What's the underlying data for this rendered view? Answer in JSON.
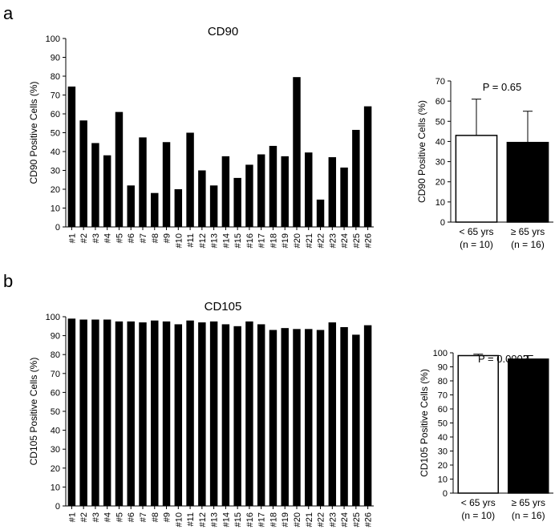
{
  "panels": [
    {
      "letter": "a",
      "main": {
        "type": "bar",
        "title": "CD90",
        "ylabel": "CD90 Positive Cells (%)",
        "ylim": [
          0,
          100
        ],
        "yticks": [
          0,
          10,
          20,
          30,
          40,
          50,
          60,
          70,
          80,
          90,
          100
        ],
        "categories": [
          "#1",
          "#2",
          "#3",
          "#4",
          "#5",
          "#6",
          "#7",
          "#8",
          "#9",
          "#10",
          "#11",
          "#12",
          "#13",
          "#14",
          "#15",
          "#16",
          "#17",
          "#18",
          "#19",
          "#20",
          "#21",
          "#22",
          "#23",
          "#24",
          "#25",
          "#26"
        ],
        "values": [
          74.5,
          56.5,
          44.5,
          38,
          61,
          22,
          47.5,
          18,
          45,
          20,
          50,
          30,
          22,
          37.5,
          26,
          33,
          38.5,
          43,
          37.5,
          79.5,
          39.5,
          14.5,
          37,
          31.5,
          51.5,
          64
        ],
        "bar_color": "#000000"
      },
      "summary": {
        "type": "bar",
        "ylabel": "CD90 Positive Cells (%)",
        "ylim": [
          0,
          70
        ],
        "yticks": [
          0,
          10,
          20,
          30,
          40,
          50,
          60,
          70
        ],
        "categories": [
          {
            "line1": "< 65 yrs",
            "line2": "(n = 10)"
          },
          {
            "line1": "≥ 65 yrs",
            "line2": "(n = 16)"
          }
        ],
        "values": [
          43,
          39.5
        ],
        "errors": [
          18,
          15.5
        ],
        "fills": [
          "#ffffff",
          "#000000"
        ],
        "annotation": "P = 0.65"
      }
    },
    {
      "letter": "b",
      "main": {
        "type": "bar",
        "title": "CD105",
        "ylabel": "CD105 Positive Cells (%)",
        "ylim": [
          0,
          100
        ],
        "yticks": [
          0,
          10,
          20,
          30,
          40,
          50,
          60,
          70,
          80,
          90,
          100
        ],
        "categories": [
          "#1",
          "#2",
          "#3",
          "#4",
          "#5",
          "#6",
          "#7",
          "#8",
          "#9",
          "#10",
          "#11",
          "#12",
          "#13",
          "#14",
          "#15",
          "#16",
          "#17",
          "#18",
          "#19",
          "#20",
          "#21",
          "#22",
          "#23",
          "#24",
          "#25",
          "#26"
        ],
        "values": [
          99,
          98.5,
          98.5,
          98.5,
          97.5,
          97.5,
          97,
          98,
          97.5,
          96,
          98,
          97,
          97.5,
          96,
          95,
          97.5,
          96,
          93,
          94,
          93.5,
          93.5,
          93,
          97,
          94.5,
          90.5,
          95.5
        ],
        "bar_color": "#000000"
      },
      "summary": {
        "type": "bar",
        "ylabel": "CD105 Positive Cells (%)",
        "ylim": [
          0,
          100
        ],
        "yticks": [
          0,
          10,
          20,
          30,
          40,
          50,
          60,
          70,
          80,
          90,
          100
        ],
        "categories": [
          {
            "line1": "< 65 yrs",
            "line2": "(n = 10)"
          },
          {
            "line1": "≥ 65 yrs",
            "line2": "(n = 16)"
          }
        ],
        "values": [
          98,
          95.5
        ],
        "errors": [
          1,
          2.5
        ],
        "fills": [
          "#ffffff",
          "#000000"
        ],
        "annotation": "P = 0.0002"
      }
    }
  ],
  "chart_data": [
    {
      "type": "bar",
      "title": "CD90",
      "ylabel": "CD90 Positive Cells (%)",
      "ylim": [
        0,
        100
      ],
      "categories": [
        "#1",
        "#2",
        "#3",
        "#4",
        "#5",
        "#6",
        "#7",
        "#8",
        "#9",
        "#10",
        "#11",
        "#12",
        "#13",
        "#14",
        "#15",
        "#16",
        "#17",
        "#18",
        "#19",
        "#20",
        "#21",
        "#22",
        "#23",
        "#24",
        "#25",
        "#26"
      ],
      "values": [
        74.5,
        56.5,
        44.5,
        38,
        61,
        22,
        47.5,
        18,
        45,
        20,
        50,
        30,
        22,
        37.5,
        26,
        33,
        38.5,
        43,
        37.5,
        79.5,
        39.5,
        14.5,
        37,
        31.5,
        51.5,
        64
      ],
      "grid": false
    },
    {
      "type": "bar",
      "ylabel": "CD90 Positive Cells (%)",
      "ylim": [
        0,
        70
      ],
      "categories": [
        "< 65 yrs (n = 10)",
        "≥ 65 yrs (n = 16)"
      ],
      "values": [
        43,
        39.5
      ],
      "error_bars": [
        18,
        15.5
      ],
      "annotation": "P = 0.65",
      "grid": false
    },
    {
      "type": "bar",
      "title": "CD105",
      "ylabel": "CD105 Positive Cells (%)",
      "ylim": [
        0,
        100
      ],
      "categories": [
        "#1",
        "#2",
        "#3",
        "#4",
        "#5",
        "#6",
        "#7",
        "#8",
        "#9",
        "#10",
        "#11",
        "#12",
        "#13",
        "#14",
        "#15",
        "#16",
        "#17",
        "#18",
        "#19",
        "#20",
        "#21",
        "#22",
        "#23",
        "#24",
        "#25",
        "#26"
      ],
      "values": [
        99,
        98.5,
        98.5,
        98.5,
        97.5,
        97.5,
        97,
        98,
        97.5,
        96,
        98,
        97,
        97.5,
        96,
        95,
        97.5,
        96,
        93,
        94,
        93.5,
        93.5,
        93,
        97,
        94.5,
        90.5,
        95.5
      ],
      "grid": false
    },
    {
      "type": "bar",
      "ylabel": "CD105 Positive Cells (%)",
      "ylim": [
        0,
        100
      ],
      "categories": [
        "< 65 yrs (n = 10)",
        "≥ 65 yrs (n = 16)"
      ],
      "values": [
        98,
        95.5
      ],
      "error_bars": [
        1,
        2.5
      ],
      "annotation": "P = 0.0002",
      "grid": false
    }
  ]
}
